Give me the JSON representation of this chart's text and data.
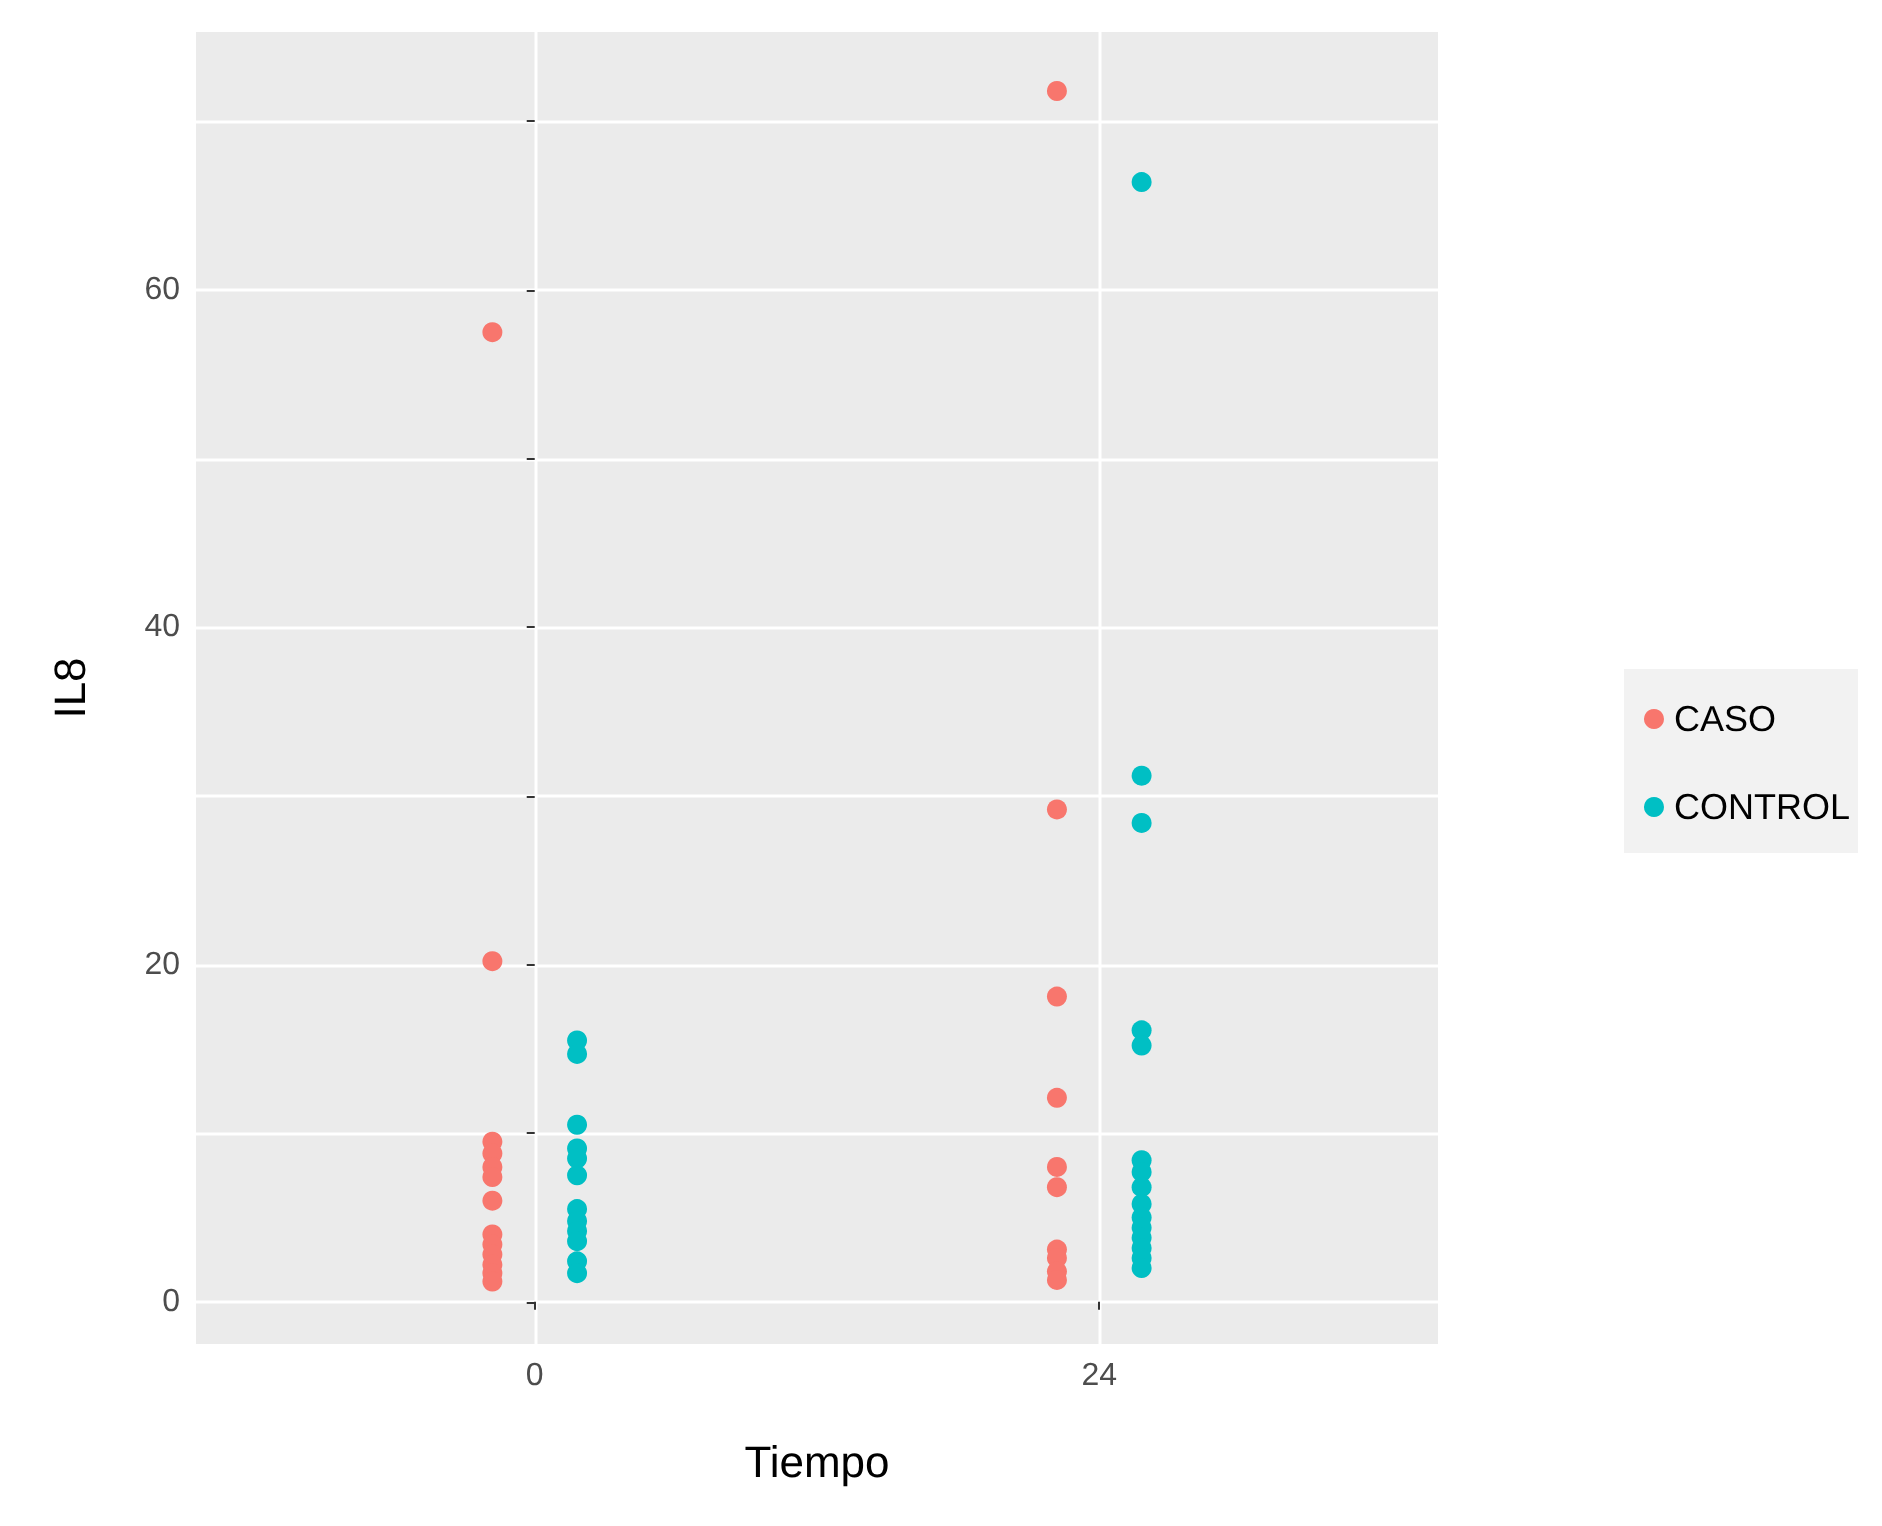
{
  "chart_data": {
    "type": "scatter",
    "xlabel": "Tiempo",
    "ylabel": "IL8",
    "xlim": [
      -14.4,
      38.4
    ],
    "ylim": [
      -2.5,
      75.3
    ],
    "xticks": [
      0,
      24
    ],
    "yticks": [
      0,
      {
        "value": 10,
        "label": null
      },
      20,
      {
        "value": 30,
        "label": null
      },
      40,
      {
        "value": 50,
        "label": null
      },
      60,
      {
        "value": 70,
        "label": null
      }
    ],
    "grid": true,
    "legend": "right",
    "marker": "circle",
    "series": [
      {
        "name": "CASO",
        "color": "#f8766d",
        "x": [
          -1.8,
          -1.8,
          -1.8,
          -1.8,
          -1.8,
          -1.8,
          -1.8,
          -1.8,
          -1.8,
          -1.8,
          -1.8,
          -1.8,
          -1.8,
          22.2,
          22.2,
          22.2,
          22.2,
          22.2,
          22.2,
          22.2,
          22.2,
          22.2,
          22.2
        ],
        "values": [
          57.5,
          20.2,
          9.5,
          8.8,
          8.0,
          7.4,
          6.0,
          4.0,
          3.4,
          2.8,
          2.2,
          1.7,
          1.2,
          71.8,
          29.2,
          18.1,
          12.1,
          8.0,
          6.8,
          3.1,
          2.6,
          1.8,
          1.3
        ]
      },
      {
        "name": "CONTROL",
        "color": "#00bfc4",
        "x": [
          1.8,
          1.8,
          1.8,
          1.8,
          1.8,
          1.8,
          1.8,
          1.8,
          1.8,
          1.8,
          1.8,
          1.8,
          25.8,
          25.8,
          25.8,
          25.8,
          25.8,
          25.8,
          25.8,
          25.8,
          25.8,
          25.8,
          25.8,
          25.8,
          25.8,
          25.8,
          25.8
        ],
        "values": [
          15.5,
          14.7,
          10.5,
          9.1,
          8.5,
          7.5,
          5.5,
          4.8,
          4.2,
          3.6,
          2.4,
          1.7,
          66.4,
          31.2,
          28.4,
          16.1,
          15.2,
          8.4,
          7.7,
          6.8,
          5.8,
          5.0,
          4.4,
          3.8,
          3.2,
          2.6,
          2.0
        ]
      }
    ]
  }
}
